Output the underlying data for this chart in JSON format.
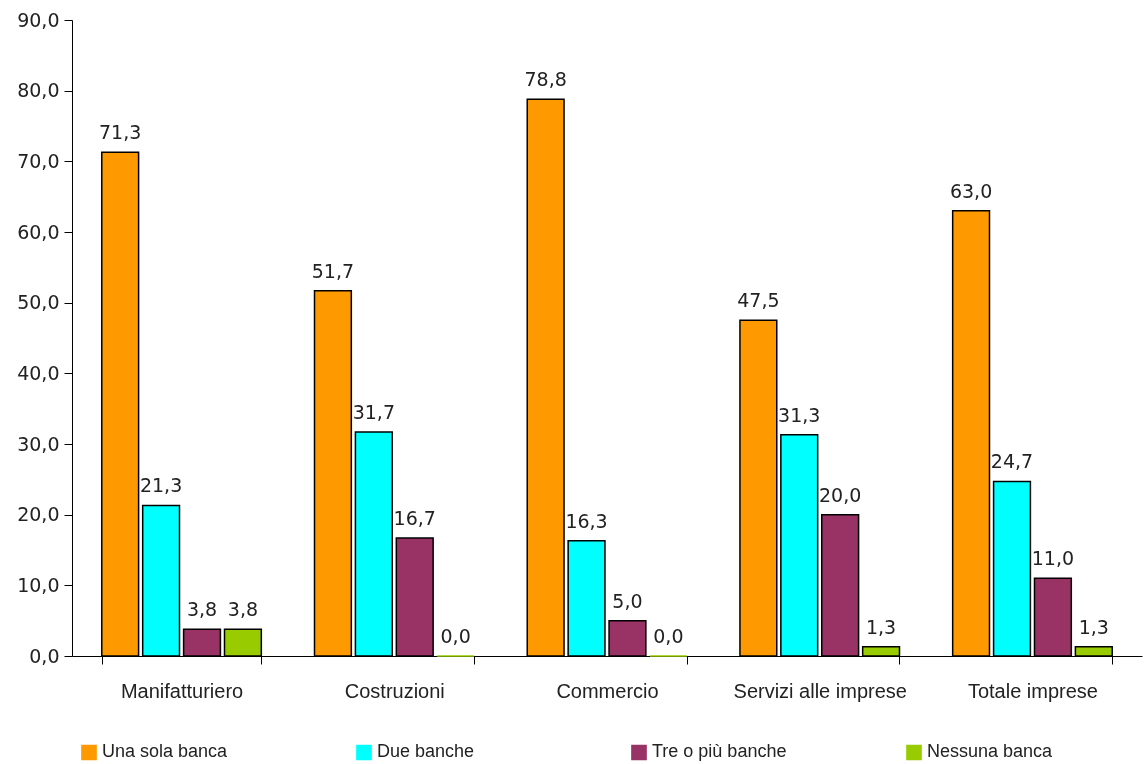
{
  "chart_data": {
    "type": "bar",
    "categories": [
      "Manifatturiero",
      "Costruzioni",
      "Commercio",
      "Servizi alle imprese",
      "Totale imprese"
    ],
    "series": [
      {
        "name": "Una sola banca",
        "color": "#ff9900",
        "values": [
          71.3,
          51.7,
          78.8,
          47.5,
          63.0
        ],
        "value_labels": [
          "71,3",
          "51,7",
          "78,8",
          "47,5",
          "63,0"
        ]
      },
      {
        "name": "Due banche",
        "color": "#00ffff",
        "values": [
          21.3,
          31.7,
          16.3,
          31.3,
          24.7
        ],
        "value_labels": [
          "21,3",
          "31,7",
          "16,3",
          "31,3",
          "24,7"
        ]
      },
      {
        "name": "Tre o più banche",
        "color": "#993366",
        "values": [
          3.8,
          16.7,
          5.0,
          20.0,
          11.0
        ],
        "value_labels": [
          "3,8",
          "16,7",
          "5,0",
          "20,0",
          "11,0"
        ]
      },
      {
        "name": "Nessuna banca",
        "color": "#99cc00",
        "values": [
          3.8,
          0.0,
          0.0,
          1.3,
          1.3
        ],
        "value_labels": [
          "3,8",
          "0,0",
          "0,0",
          "1,3",
          "1,3"
        ]
      }
    ],
    "ylim": [
      0,
      90
    ],
    "yticks": [
      {
        "value": 0,
        "label": "0,0"
      },
      {
        "value": 10,
        "label": "10,0"
      },
      {
        "value": 20,
        "label": "20,0"
      },
      {
        "value": 30,
        "label": "30,0"
      },
      {
        "value": 40,
        "label": "40,0"
      },
      {
        "value": 50,
        "label": "50,0"
      },
      {
        "value": 60,
        "label": "60,0"
      },
      {
        "value": 70,
        "label": "70,0"
      },
      {
        "value": 80,
        "label": "80,0"
      },
      {
        "value": 90,
        "label": "90,0"
      }
    ],
    "legend": "bottom"
  }
}
